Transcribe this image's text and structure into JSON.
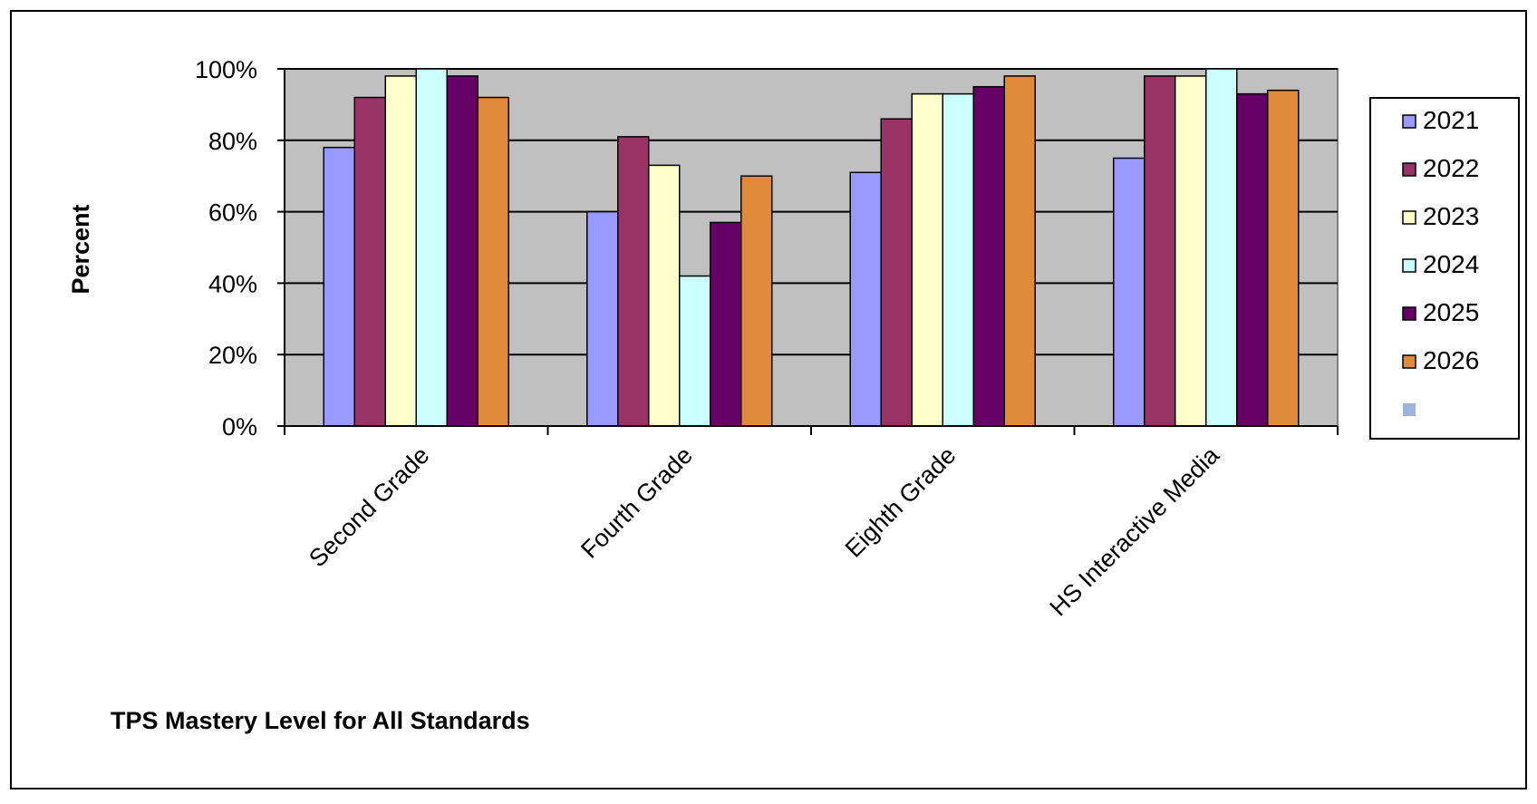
{
  "chart_data": {
    "type": "bar",
    "title": "TPS Mastery Level for All Standards",
    "xlabel": "",
    "ylabel": "Percent",
    "categories": [
      "Second Grade",
      "Fourth Grade",
      "Eighth Grade",
      "HS Interactive Media"
    ],
    "series": [
      {
        "name": "2021",
        "color": "#9999FF",
        "values": [
          78,
          60,
          71,
          75
        ]
      },
      {
        "name": "2022",
        "color": "#993366",
        "values": [
          92,
          81,
          86,
          98
        ]
      },
      {
        "name": "2023",
        "color": "#FFFFCC",
        "values": [
          98,
          73,
          93,
          98
        ]
      },
      {
        "name": "2024",
        "color": "#CCFFFF",
        "values": [
          100,
          42,
          93,
          100
        ]
      },
      {
        "name": "2025",
        "color": "#660066",
        "values": [
          98,
          57,
          95,
          93
        ]
      },
      {
        "name": "2026",
        "color": "#E08A3C",
        "values": [
          92,
          70,
          98,
          94
        ]
      }
    ],
    "legend_extra_marker_color": "#9DB3DA",
    "ylim": [
      0,
      100
    ],
    "yticks": [
      "0%",
      "20%",
      "40%",
      "60%",
      "80%",
      "100%"
    ],
    "grid": true,
    "plot_background": "#C0C0C0",
    "legend_position": "right"
  }
}
